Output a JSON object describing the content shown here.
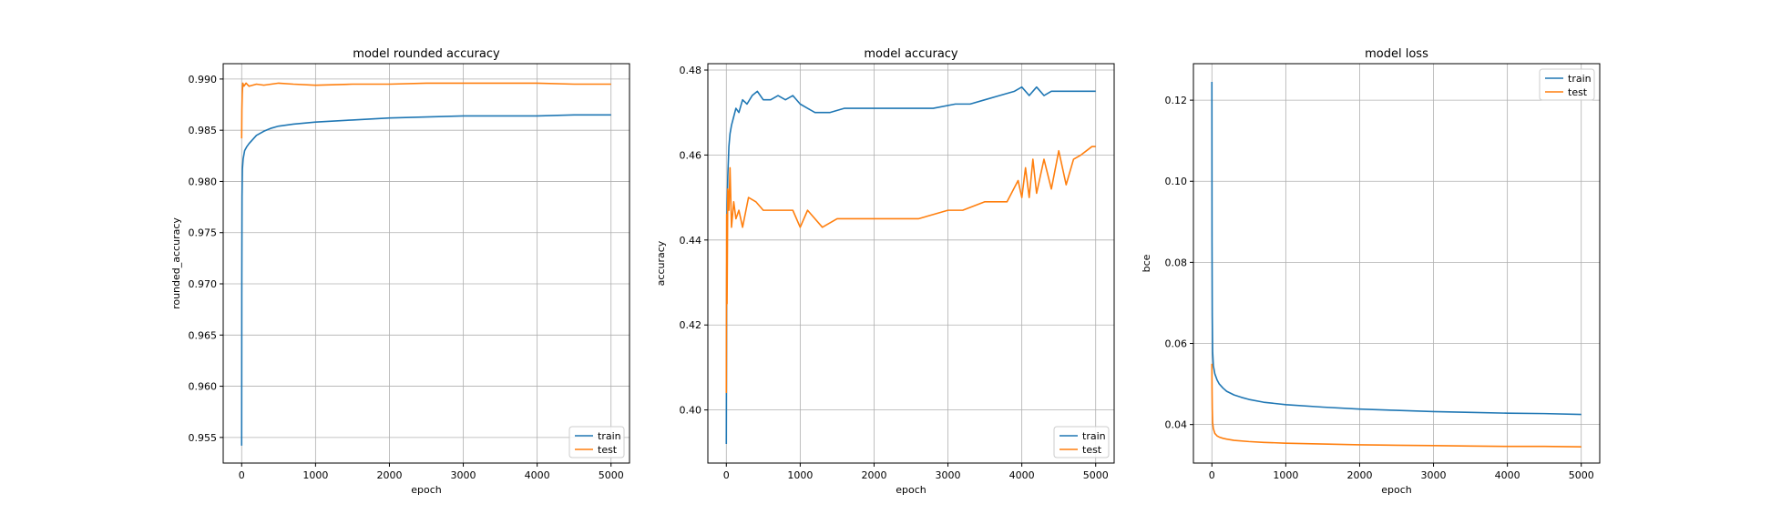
{
  "colors": {
    "train": "#1f77b4",
    "test": "#ff7f0e",
    "grid": "#b0b0b0"
  },
  "chart_data": [
    {
      "type": "line",
      "title": "model rounded accuracy",
      "xlabel": "epoch",
      "ylabel": "rounded_accuracy",
      "xlim": [
        -250,
        5250
      ],
      "ylim": [
        0.9525,
        0.9915
      ],
      "xticks": [
        0,
        1000,
        2000,
        3000,
        4000,
        5000
      ],
      "yticks": [
        0.955,
        0.96,
        0.965,
        0.97,
        0.975,
        0.98,
        0.985,
        0.99
      ],
      "ytick_decimals": 3,
      "grid": true,
      "legend": "lower-right",
      "legend_entries": [
        "train",
        "test"
      ],
      "series": [
        {
          "name": "train",
          "color": "#1f77b4",
          "x": [
            0,
            2,
            5,
            10,
            20,
            40,
            70,
            100,
            150,
            200,
            300,
            400,
            500,
            700,
            1000,
            1500,
            2000,
            2500,
            3000,
            3500,
            4000,
            4500,
            5000
          ],
          "y": [
            0.9542,
            0.97,
            0.9785,
            0.9812,
            0.9822,
            0.983,
            0.9834,
            0.9837,
            0.9841,
            0.9845,
            0.9849,
            0.9852,
            0.9854,
            0.9856,
            0.9858,
            0.986,
            0.9862,
            0.9863,
            0.9864,
            0.9864,
            0.9864,
            0.9865,
            0.9865
          ]
        },
        {
          "name": "test",
          "color": "#ff7f0e",
          "x": [
            0,
            3,
            8,
            15,
            30,
            60,
            100,
            200,
            300,
            500,
            700,
            1000,
            1500,
            2000,
            2500,
            3000,
            3500,
            4000,
            4500,
            5000
          ],
          "y": [
            0.9842,
            0.987,
            0.9885,
            0.9896,
            0.9893,
            0.9896,
            0.9893,
            0.9895,
            0.9894,
            0.9896,
            0.9895,
            0.9894,
            0.9895,
            0.9895,
            0.9896,
            0.9896,
            0.9896,
            0.9896,
            0.9895,
            0.9895
          ]
        }
      ]
    },
    {
      "type": "line",
      "title": "model accuracy",
      "xlabel": "epoch",
      "ylabel": "accuracy",
      "xlim": [
        -250,
        5250
      ],
      "ylim": [
        0.3875,
        0.4815
      ],
      "xticks": [
        0,
        1000,
        2000,
        3000,
        4000,
        5000
      ],
      "yticks": [
        0.4,
        0.42,
        0.44,
        0.46,
        0.48
      ],
      "ytick_decimals": 2,
      "grid": true,
      "legend": "lower-right",
      "legend_entries": [
        "train",
        "test"
      ],
      "series": [
        {
          "name": "train",
          "color": "#1f77b4",
          "x": [
            0,
            5,
            10,
            20,
            35,
            50,
            70,
            100,
            130,
            170,
            220,
            280,
            350,
            420,
            500,
            600,
            700,
            800,
            900,
            1000,
            1100,
            1200,
            1400,
            1600,
            1800,
            2000,
            2400,
            2800,
            3100,
            3300,
            3500,
            3700,
            3900,
            4000,
            4100,
            4200,
            4300,
            4400,
            4500,
            4700,
            5000
          ],
          "y": [
            0.392,
            0.43,
            0.446,
            0.455,
            0.462,
            0.465,
            0.467,
            0.469,
            0.471,
            0.47,
            0.473,
            0.472,
            0.474,
            0.475,
            0.473,
            0.473,
            0.474,
            0.473,
            0.474,
            0.472,
            0.471,
            0.47,
            0.47,
            0.471,
            0.471,
            0.471,
            0.471,
            0.471,
            0.472,
            0.472,
            0.473,
            0.474,
            0.475,
            0.476,
            0.474,
            0.476,
            0.474,
            0.475,
            0.475,
            0.475,
            0.475
          ]
        },
        {
          "name": "test",
          "color": "#ff7f0e",
          "x": [
            0,
            5,
            10,
            20,
            35,
            50,
            70,
            100,
            130,
            170,
            220,
            300,
            400,
            500,
            700,
            900,
            1000,
            1100,
            1300,
            1500,
            1800,
            2200,
            2600,
            3000,
            3200,
            3500,
            3800,
            3950,
            4000,
            4050,
            4100,
            4150,
            4200,
            4300,
            4400,
            4500,
            4600,
            4700,
            4800,
            4950,
            5000
          ],
          "y": [
            0.404,
            0.446,
            0.425,
            0.452,
            0.447,
            0.457,
            0.443,
            0.449,
            0.445,
            0.447,
            0.443,
            0.45,
            0.449,
            0.447,
            0.447,
            0.447,
            0.443,
            0.447,
            0.443,
            0.445,
            0.445,
            0.445,
            0.445,
            0.447,
            0.447,
            0.449,
            0.449,
            0.454,
            0.45,
            0.457,
            0.45,
            0.459,
            0.451,
            0.459,
            0.452,
            0.461,
            0.453,
            0.459,
            0.46,
            0.462,
            0.462
          ]
        }
      ]
    },
    {
      "type": "line",
      "title": "model loss",
      "xlabel": "epoch",
      "ylabel": "bce",
      "xlim": [
        -250,
        5250
      ],
      "ylim": [
        0.0305,
        0.129
      ],
      "xticks": [
        0,
        1000,
        2000,
        3000,
        4000,
        5000
      ],
      "yticks": [
        0.04,
        0.06,
        0.08,
        0.1,
        0.12
      ],
      "ytick_decimals": 2,
      "grid": true,
      "legend": "top-right",
      "legend_entries": [
        "train",
        "test"
      ],
      "series": [
        {
          "name": "train",
          "color": "#1f77b4",
          "x": [
            0,
            2,
            5,
            10,
            20,
            40,
            70,
            100,
            150,
            200,
            300,
            400,
            500,
            700,
            1000,
            1500,
            2000,
            2500,
            3000,
            3500,
            4000,
            4500,
            5000
          ],
          "y": [
            0.1245,
            0.085,
            0.067,
            0.058,
            0.0545,
            0.0525,
            0.051,
            0.05,
            0.049,
            0.0482,
            0.0473,
            0.0467,
            0.0462,
            0.0455,
            0.0449,
            0.0443,
            0.0438,
            0.0435,
            0.0432,
            0.043,
            0.0428,
            0.0427,
            0.0425
          ]
        },
        {
          "name": "test",
          "color": "#ff7f0e",
          "x": [
            0,
            2,
            5,
            10,
            20,
            40,
            70,
            100,
            150,
            200,
            300,
            500,
            700,
            1000,
            1500,
            2000,
            2500,
            3000,
            3500,
            4000,
            4500,
            5000
          ],
          "y": [
            0.055,
            0.049,
            0.044,
            0.0405,
            0.039,
            0.0378,
            0.0372,
            0.0369,
            0.0366,
            0.0364,
            0.0361,
            0.0358,
            0.0356,
            0.0354,
            0.0352,
            0.035,
            0.0349,
            0.0348,
            0.0347,
            0.0346,
            0.0346,
            0.0345
          ]
        }
      ]
    }
  ]
}
